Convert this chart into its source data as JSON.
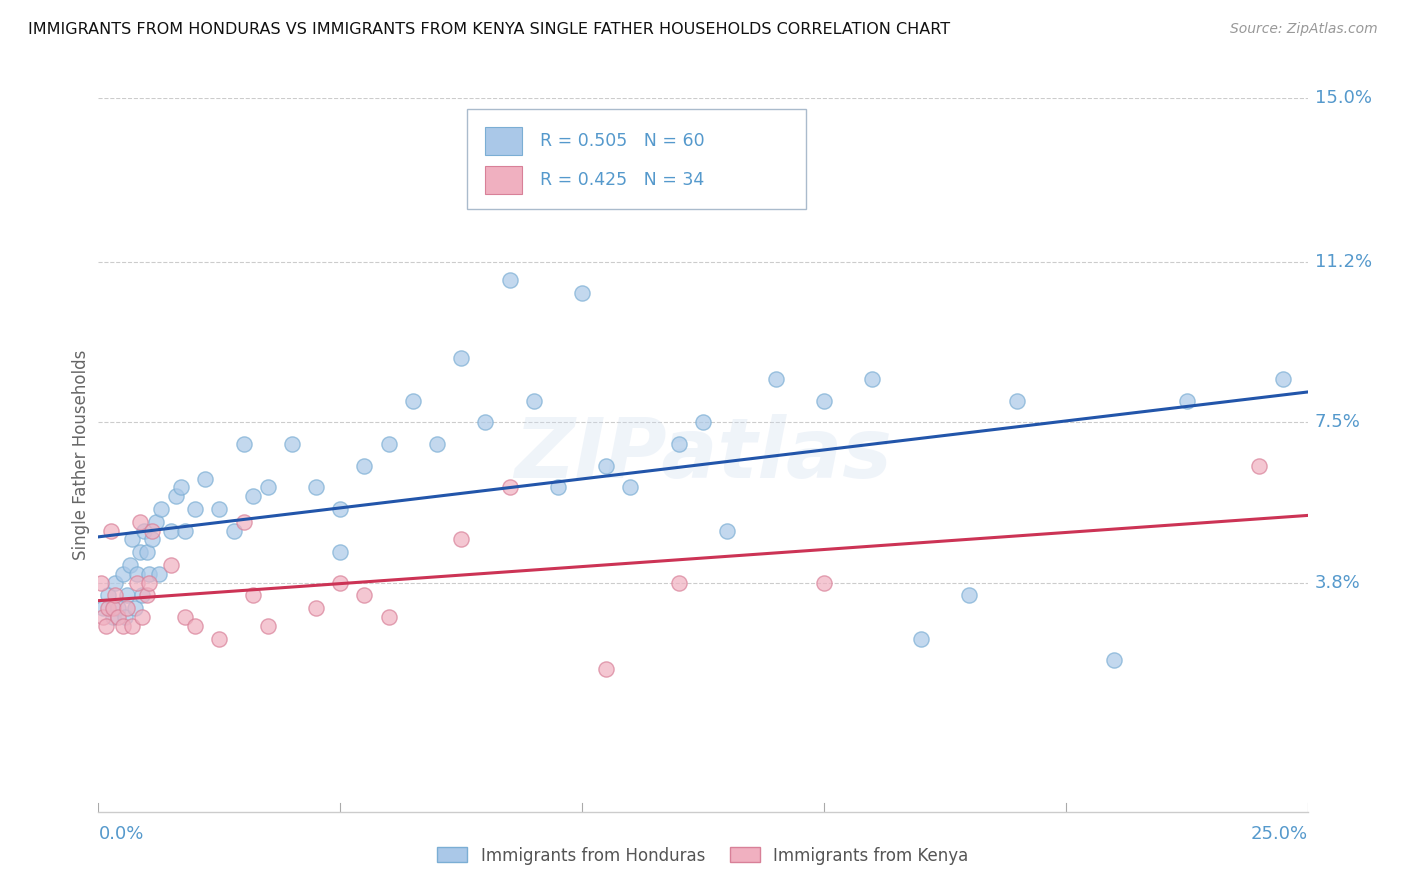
{
  "title": "IMMIGRANTS FROM HONDURAS VS IMMIGRANTS FROM KENYA SINGLE FATHER HOUSEHOLDS CORRELATION CHART",
  "source": "Source: ZipAtlas.com",
  "ylabel": "Single Father Households",
  "xlabel_bottom_left": "0.0%",
  "xlabel_bottom_right": "25.0%",
  "xlim": [
    0.0,
    25.0
  ],
  "ylim": [
    -1.5,
    15.0
  ],
  "ymin_plot": -1.5,
  "ymax_plot": 15.0,
  "yticks": [
    3.8,
    7.5,
    11.2,
    15.0
  ],
  "ytick_labels": [
    "3.8%",
    "7.5%",
    "11.2%",
    "15.0%"
  ],
  "honduras": {
    "R": 0.505,
    "N": 60,
    "color": "#aac8e8",
    "edge_color": "#7baed4",
    "line_color": "#2255aa",
    "points_x": [
      0.1,
      0.2,
      0.3,
      0.35,
      0.4,
      0.5,
      0.55,
      0.6,
      0.65,
      0.7,
      0.75,
      0.8,
      0.85,
      0.9,
      0.95,
      1.0,
      1.05,
      1.1,
      1.2,
      1.25,
      1.3,
      1.5,
      1.6,
      1.7,
      1.8,
      2.0,
      2.2,
      2.5,
      2.8,
      3.0,
      3.2,
      3.5,
      4.0,
      4.5,
      5.0,
      5.0,
      5.5,
      6.0,
      6.5,
      7.0,
      7.5,
      8.0,
      8.5,
      9.0,
      9.5,
      10.0,
      10.5,
      11.0,
      12.0,
      12.5,
      13.0,
      14.0,
      15.0,
      16.0,
      17.0,
      18.0,
      19.0,
      21.0,
      22.5,
      24.5
    ],
    "points_y": [
      3.2,
      3.5,
      3.0,
      3.8,
      3.2,
      4.0,
      3.0,
      3.5,
      4.2,
      4.8,
      3.2,
      4.0,
      4.5,
      3.5,
      5.0,
      4.5,
      4.0,
      4.8,
      5.2,
      4.0,
      5.5,
      5.0,
      5.8,
      6.0,
      5.0,
      5.5,
      6.2,
      5.5,
      5.0,
      7.0,
      5.8,
      6.0,
      7.0,
      6.0,
      4.5,
      5.5,
      6.5,
      7.0,
      8.0,
      7.0,
      9.0,
      7.5,
      10.8,
      8.0,
      6.0,
      10.5,
      6.5,
      6.0,
      7.0,
      7.5,
      5.0,
      8.5,
      8.0,
      8.5,
      2.5,
      3.5,
      8.0,
      2.0,
      8.0,
      8.5
    ]
  },
  "kenya": {
    "R": 0.425,
    "N": 34,
    "color": "#f0b0c0",
    "edge_color": "#d88098",
    "line_color": "#cc3355",
    "points_x": [
      0.05,
      0.1,
      0.15,
      0.2,
      0.25,
      0.3,
      0.35,
      0.4,
      0.5,
      0.6,
      0.7,
      0.8,
      0.85,
      0.9,
      1.0,
      1.05,
      1.1,
      1.5,
      1.8,
      2.0,
      2.5,
      3.0,
      3.2,
      3.5,
      4.5,
      5.0,
      5.5,
      6.0,
      7.5,
      8.5,
      10.5,
      12.0,
      15.0,
      24.0
    ],
    "points_y": [
      3.8,
      3.0,
      2.8,
      3.2,
      5.0,
      3.2,
      3.5,
      3.0,
      2.8,
      3.2,
      2.8,
      3.8,
      5.2,
      3.0,
      3.5,
      3.8,
      5.0,
      4.2,
      3.0,
      2.8,
      2.5,
      5.2,
      3.5,
      2.8,
      3.2,
      3.8,
      3.5,
      3.0,
      4.8,
      6.0,
      1.8,
      3.8,
      3.8,
      6.5
    ]
  },
  "legend_label_honduras": "Immigrants from Honduras",
  "legend_label_kenya": "Immigrants from Kenya",
  "watermark": "ZIPatlas",
  "background_color": "#ffffff",
  "grid_color": "#cccccc",
  "title_color": "#111111",
  "tick_label_color": "#5599cc",
  "source_color": "#999999"
}
